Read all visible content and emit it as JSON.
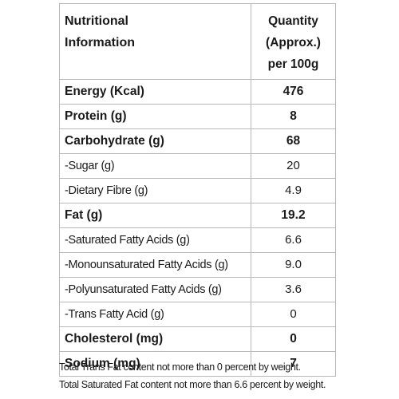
{
  "header": {
    "nutrient_title_line1": "Nutritional",
    "nutrient_title_line2": "Information",
    "quantity_line1": "Quantity",
    "quantity_line2": "(Approx.)",
    "quantity_line3": "per 100g"
  },
  "rows": [
    {
      "name": "Energy (Kcal)",
      "value": "476"
    },
    {
      "name": "Protein (g)",
      "value": "8"
    },
    {
      "name": "Carbohydrate (g)",
      "value": "68"
    },
    {
      "name": "-Sugar (g)",
      "value": "20"
    },
    {
      "name": "-Dietary Fibre (g)",
      "value": "4.9"
    },
    {
      "name": "Fat (g)",
      "value": "19.2"
    },
    {
      "name": "-Saturated Fatty Acids (g)",
      "value": "6.6"
    },
    {
      "name": "-Monounsaturated Fatty Acids (g)",
      "value": "9.0"
    },
    {
      "name": "-Polyunsaturated Fatty Acids (g)",
      "value": "3.6"
    },
    {
      "name": "-Trans Fatty Acid (g)",
      "value": "0"
    },
    {
      "name": "Cholesterol (mg)",
      "value": "0"
    },
    {
      "name": "Sodium (mg)",
      "value": "7"
    }
  ],
  "footnotes": {
    "line1": "Total Trans Fat content not more than 0 percent by weight.",
    "line2": "Total Saturated Fat content not more than 6.6 percent by weight."
  }
}
